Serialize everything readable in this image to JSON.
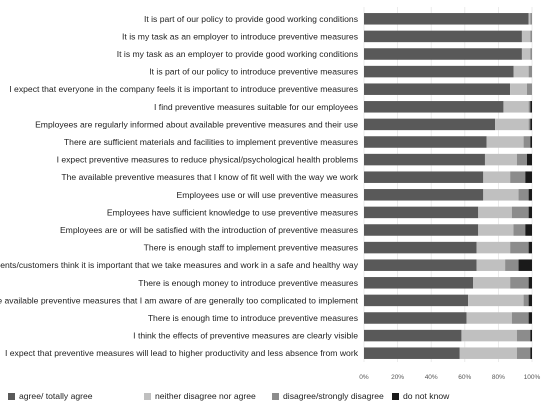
{
  "chart_data": {
    "type": "bar",
    "orientation": "horizontal",
    "stacked": true,
    "percent": true,
    "xlim": [
      0,
      100
    ],
    "x_ticks": [
      "0%",
      "20%",
      "40%",
      "60%",
      "80%",
      "100%"
    ],
    "grid": true,
    "legend_position": "bottom",
    "categories": [
      "It is part of our policy to provide good working conditions",
      "It is my task as an employer to introduce preventive measures",
      "It is my task as an employer to provide good working conditions",
      "It is part of our policy to introduce preventive measures",
      "I expect that everyone in the company feels it is important to introduce preventive measures",
      "I find preventive measures suitable for our employees",
      "Employees are regularly informed about available preventive measures and their use",
      "There are sufficient materials and facilities to implement preventive measures",
      "I expect preventive measures to reduce physical/psychological health problems",
      "The available preventive measures that I know of fit well with the way we work",
      "Employees use or will use preventive measures",
      "Employees have sufficient knowledge to use preventive measures",
      "Employees are or will be satisfied with the introduction of preventive measures",
      "There is enough staff to implement preventive measures",
      "Our clients/customers think it is important that we take measures and work in a safe and healthy way",
      "There is enough money to introduce preventive measures",
      "The available preventive measures that I am aware of are generally too complicated to implement",
      "There is enough time to introduce preventive measures",
      "I think the effects of preventive measures are clearly visible",
      "I expect that preventive measures will lead to higher productivity and less absence from work"
    ],
    "series": [
      {
        "name": "agree/ totally agree",
        "color": "#595959",
        "values": [
          98,
          94,
          94,
          89,
          87,
          83,
          78,
          73,
          72,
          71,
          71,
          68,
          68,
          67,
          67,
          65,
          62,
          61,
          58,
          57
        ]
      },
      {
        "name": "neither disagree nor agree",
        "color": "#c0c0c0",
        "values": [
          1,
          5,
          5,
          9,
          10,
          15,
          20,
          22,
          19,
          16,
          21,
          20,
          21,
          20,
          17,
          22,
          33,
          27,
          33,
          34
        ]
      },
      {
        "name": "disagree/strongly disagree",
        "color": "#8c8c8c",
        "values": [
          1,
          1,
          1,
          2,
          3,
          1,
          1,
          4,
          6,
          9,
          6,
          10,
          7,
          11,
          8,
          11,
          3,
          10,
          8,
          8
        ]
      },
      {
        "name": "do not know",
        "color": "#1a1a1a",
        "values": [
          0,
          0,
          0,
          0,
          0,
          1,
          1,
          1,
          3,
          4,
          2,
          2,
          4,
          2,
          8,
          2,
          2,
          2,
          1,
          1
        ]
      }
    ]
  }
}
